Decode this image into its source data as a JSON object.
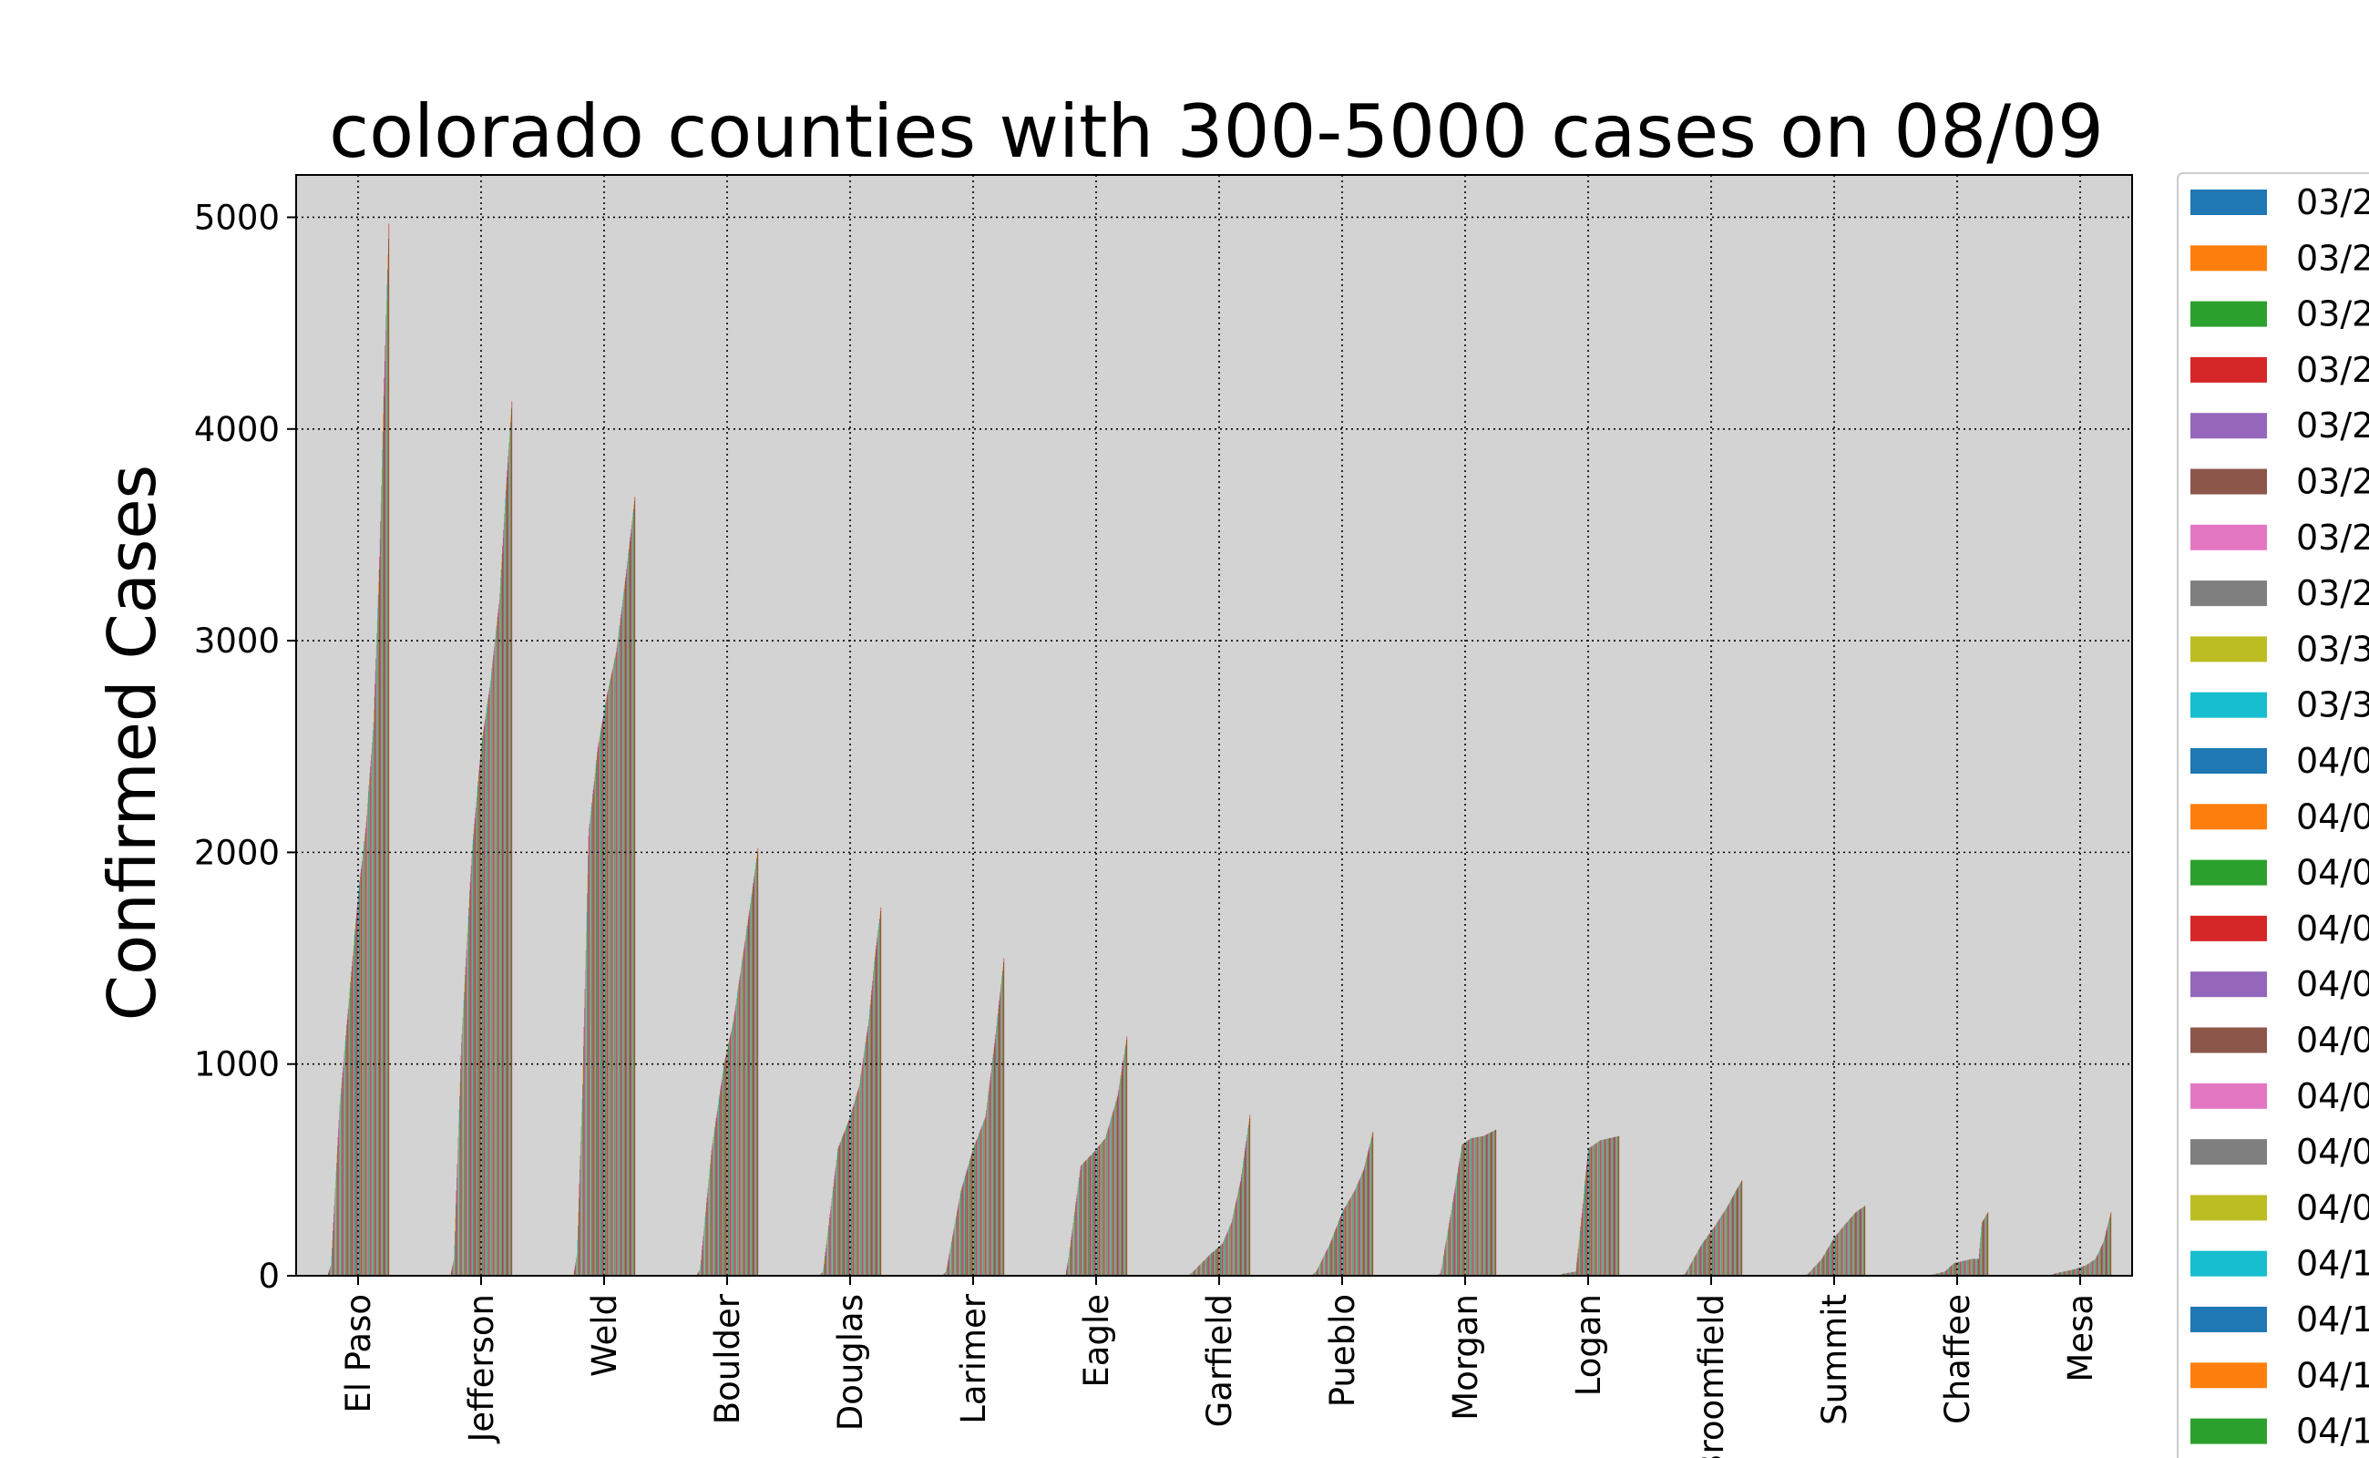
{
  "chart_data": {
    "type": "bar",
    "title": "colorado counties with 300-5000 cases on 08/09",
    "xlabel": "",
    "ylabel": "Confirmed Cases",
    "ylim": [
      0,
      5200
    ],
    "yticks": [
      0,
      1000,
      2000,
      3000,
      4000,
      5000
    ],
    "grid": true,
    "legend_position": "right, outside plot",
    "palette": [
      "#1f77b4",
      "#ff7f0e",
      "#2ca02c",
      "#d62728",
      "#9467bd",
      "#8c564b",
      "#e377c2",
      "#7f7f7f",
      "#bcbd22",
      "#17becf"
    ],
    "plot_background": "#d3d3d3",
    "categories": [
      "El Paso",
      "Jefferson",
      "Weld",
      "Boulder",
      "Douglas",
      "Larimer",
      "Eagle",
      "Garfield",
      "Pueblo",
      "Morgan",
      "Logan",
      "Broomfield",
      "Summit",
      "Chaffee",
      "Mesa"
    ],
    "dates_shown_in_legend": [
      "03/2",
      "03/2",
      "03/2",
      "03/2",
      "03/2",
      "03/2",
      "03/2",
      "03/2",
      "03/3",
      "03/3",
      "04/0",
      "04/0",
      "04/0",
      "04/0",
      "04/0",
      "04/0",
      "04/0",
      "04/0",
      "04/0",
      "04/1",
      "04/1",
      "04/1",
      "04/1"
    ],
    "series_per_category": 134,
    "county_growth_profiles": [
      {
        "county": "El Paso",
        "profile": [
          [
            0,
            0
          ],
          [
            0.06,
            50
          ],
          [
            0.2,
            800
          ],
          [
            0.35,
            1300
          ],
          [
            0.5,
            1800
          ],
          [
            0.62,
            2100
          ],
          [
            0.75,
            2600
          ],
          [
            0.85,
            3400
          ],
          [
            0.93,
            4300
          ],
          [
            1.0,
            4970
          ]
        ]
      },
      {
        "county": "Jefferson",
        "profile": [
          [
            0,
            0
          ],
          [
            0.06,
            80
          ],
          [
            0.18,
            1100
          ],
          [
            0.35,
            2000
          ],
          [
            0.5,
            2500
          ],
          [
            0.65,
            2800
          ],
          [
            0.8,
            3200
          ],
          [
            0.9,
            3700
          ],
          [
            1.0,
            4130
          ]
        ]
      },
      {
        "county": "Weld",
        "profile": [
          [
            0,
            0
          ],
          [
            0.06,
            100
          ],
          [
            0.15,
            900
          ],
          [
            0.25,
            2100
          ],
          [
            0.4,
            2500
          ],
          [
            0.55,
            2750
          ],
          [
            0.7,
            2950
          ],
          [
            0.85,
            3300
          ],
          [
            1.0,
            3680
          ]
        ]
      },
      {
        "county": "Boulder",
        "profile": [
          [
            0,
            0
          ],
          [
            0.06,
            30
          ],
          [
            0.25,
            600
          ],
          [
            0.45,
            1000
          ],
          [
            0.6,
            1200
          ],
          [
            0.75,
            1500
          ],
          [
            0.9,
            1800
          ],
          [
            1.0,
            2020
          ]
        ]
      },
      {
        "county": "Douglas",
        "profile": [
          [
            0,
            0
          ],
          [
            0.06,
            20
          ],
          [
            0.3,
            600
          ],
          [
            0.5,
            750
          ],
          [
            0.65,
            900
          ],
          [
            0.8,
            1200
          ],
          [
            0.9,
            1500
          ],
          [
            1.0,
            1740
          ]
        ]
      },
      {
        "county": "Larimer",
        "profile": [
          [
            0,
            0
          ],
          [
            0.06,
            20
          ],
          [
            0.3,
            400
          ],
          [
            0.5,
            600
          ],
          [
            0.7,
            750
          ],
          [
            0.85,
            1100
          ],
          [
            1.0,
            1500
          ]
        ]
      },
      {
        "county": "Eagle",
        "profile": [
          [
            0,
            0
          ],
          [
            0.05,
            80
          ],
          [
            0.25,
            520
          ],
          [
            0.45,
            580
          ],
          [
            0.65,
            650
          ],
          [
            0.85,
            850
          ],
          [
            1.0,
            1130
          ]
        ]
      },
      {
        "county": "Garfield",
        "profile": [
          [
            0,
            0
          ],
          [
            0.08,
            20
          ],
          [
            0.35,
            100
          ],
          [
            0.55,
            150
          ],
          [
            0.7,
            250
          ],
          [
            0.85,
            450
          ],
          [
            1.0,
            760
          ]
        ]
      },
      {
        "county": "Pueblo",
        "profile": [
          [
            0,
            0
          ],
          [
            0.08,
            20
          ],
          [
            0.3,
            150
          ],
          [
            0.5,
            300
          ],
          [
            0.7,
            400
          ],
          [
            0.85,
            500
          ],
          [
            1.0,
            680
          ]
        ]
      },
      {
        "county": "Morgan",
        "profile": [
          [
            0,
            0
          ],
          [
            0.1,
            10
          ],
          [
            0.3,
            350
          ],
          [
            0.45,
            620
          ],
          [
            0.6,
            650
          ],
          [
            0.8,
            660
          ],
          [
            1.0,
            690
          ]
        ]
      },
      {
        "county": "Logan",
        "profile": [
          [
            0,
            0
          ],
          [
            0.1,
            10
          ],
          [
            0.3,
            20
          ],
          [
            0.4,
            300
          ],
          [
            0.5,
            600
          ],
          [
            0.7,
            640
          ],
          [
            1.0,
            660
          ]
        ]
      },
      {
        "county": "Broomfield",
        "profile": [
          [
            0,
            0
          ],
          [
            0.08,
            10
          ],
          [
            0.35,
            150
          ],
          [
            0.55,
            230
          ],
          [
            0.75,
            320
          ],
          [
            0.9,
            400
          ],
          [
            1.0,
            450
          ]
        ]
      },
      {
        "county": "Summit",
        "profile": [
          [
            0,
            0
          ],
          [
            0.08,
            10
          ],
          [
            0.3,
            80
          ],
          [
            0.5,
            180
          ],
          [
            0.7,
            250
          ],
          [
            0.85,
            300
          ],
          [
            1.0,
            330
          ]
        ]
      },
      {
        "county": "Chaffee",
        "profile": [
          [
            0,
            0
          ],
          [
            0.1,
            5
          ],
          [
            0.3,
            20
          ],
          [
            0.45,
            60
          ],
          [
            0.75,
            80
          ],
          [
            0.85,
            80
          ],
          [
            0.9,
            250
          ],
          [
            1.0,
            300
          ]
        ]
      },
      {
        "county": "Mesa",
        "profile": [
          [
            0,
            0
          ],
          [
            0.08,
            10
          ],
          [
            0.4,
            30
          ],
          [
            0.6,
            50
          ],
          [
            0.75,
            80
          ],
          [
            0.88,
            160
          ],
          [
            1.0,
            300
          ]
        ]
      }
    ]
  }
}
